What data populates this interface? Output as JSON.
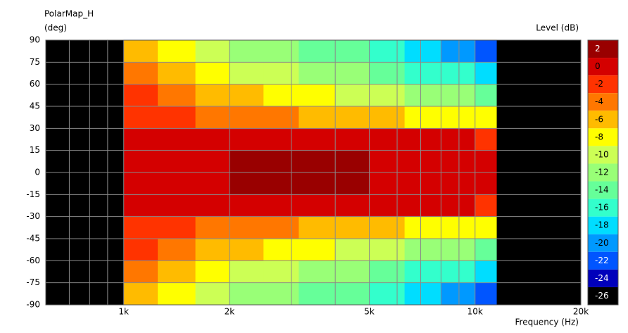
{
  "chart_data": {
    "type": "heatmap",
    "title": "PolarMap_H",
    "y_label": "(deg)",
    "colorbar_label": "Level  (dB)",
    "x_label": "Frequency  (Hz)",
    "log_x": true,
    "grid": true,
    "background": "#000000",
    "xlim": [
      600,
      20000
    ],
    "xticks": [
      {
        "value": 1000,
        "label": "1k"
      },
      {
        "value": 2000,
        "label": "2k"
      },
      {
        "value": 5000,
        "label": "5k"
      },
      {
        "value": 10000,
        "label": "10k"
      },
      {
        "value": 20000,
        "label": "20k"
      }
    ],
    "x_minor_ticks": [
      700,
      800,
      900,
      3000,
      4000,
      6000,
      7000,
      8000,
      9000
    ],
    "ylim": [
      -90,
      90
    ],
    "yticks": [
      90,
      75,
      60,
      45,
      30,
      15,
      0,
      -15,
      -30,
      -45,
      -60,
      -75,
      -90
    ],
    "x_edges": [
      1000,
      1250,
      1600,
      2000,
      2500,
      3150,
      4000,
      5000,
      6300,
      8000,
      10000,
      11500
    ],
    "y_edges": [
      90,
      75,
      60,
      45,
      30,
      15,
      0,
      -15,
      -30,
      -45,
      -60,
      -75,
      -90
    ],
    "values": [
      [
        -6,
        -8,
        -10,
        -12,
        -12,
        -14,
        -14,
        -16,
        -18,
        -20,
        -22
      ],
      [
        -4,
        -6,
        -8,
        -10,
        -10,
        -12,
        -12,
        -14,
        -16,
        -16,
        -18
      ],
      [
        -2,
        -4,
        -6,
        -6,
        -8,
        -8,
        -10,
        -10,
        -12,
        -12,
        -14
      ],
      [
        -2,
        -2,
        -4,
        -4,
        -4,
        -6,
        -6,
        -6,
        -8,
        -8,
        -8
      ],
      [
        0,
        0,
        0,
        0,
        0,
        0,
        0,
        0,
        0,
        0,
        -2
      ],
      [
        0,
        0,
        0,
        2,
        2,
        2,
        2,
        0,
        0,
        0,
        0
      ],
      [
        0,
        0,
        0,
        2,
        2,
        2,
        2,
        0,
        0,
        0,
        0
      ],
      [
        0,
        0,
        0,
        0,
        0,
        0,
        0,
        0,
        0,
        0,
        -2
      ],
      [
        -2,
        -2,
        -4,
        -4,
        -4,
        -6,
        -6,
        -6,
        -8,
        -8,
        -8
      ],
      [
        -2,
        -4,
        -6,
        -6,
        -8,
        -8,
        -10,
        -10,
        -12,
        -12,
        -14
      ],
      [
        -4,
        -6,
        -8,
        -10,
        -10,
        -12,
        -12,
        -14,
        -16,
        -16,
        -18
      ],
      [
        -6,
        -8,
        -10,
        -12,
        -12,
        -14,
        -14,
        -16,
        -18,
        -20,
        -22
      ]
    ],
    "colorbar": {
      "levels": [
        2,
        0,
        -2,
        -4,
        -6,
        -8,
        -10,
        -12,
        -14,
        -16,
        -18,
        -20,
        -22,
        -24,
        -26
      ],
      "colors": [
        "#990000",
        "#d40000",
        "#ff3300",
        "#ff7700",
        "#ffbb00",
        "#ffff00",
        "#ccff55",
        "#99ff77",
        "#66ff99",
        "#33ffcc",
        "#00ddff",
        "#0099ff",
        "#0055ff",
        "#0000bb",
        "#000000"
      ]
    }
  }
}
